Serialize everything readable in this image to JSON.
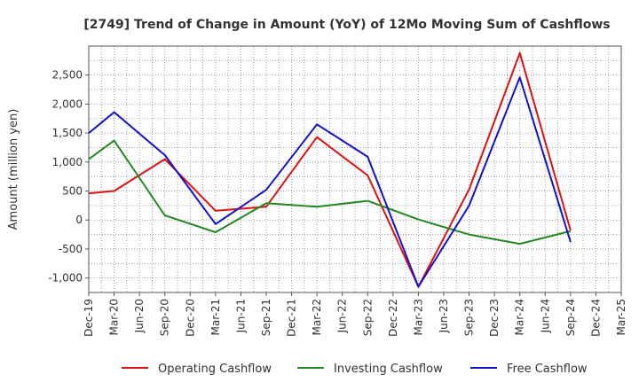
{
  "chart_data": {
    "type": "line",
    "title": "[2749]  Trend of Change in Amount (YoY) of 12Mo Moving Sum of Cashflows",
    "xlabel": "",
    "ylabel": "Amount (million yen)",
    "ylim": [
      -1250,
      3000
    ],
    "yticks": [
      2500,
      2000,
      1500,
      1000,
      500,
      0,
      -500,
      -1000
    ],
    "ytick_labels": [
      "2,500",
      "2,000",
      "1,500",
      "1,000",
      "500",
      "0",
      "-500",
      "-1,000"
    ],
    "categories": [
      "Dec-19",
      "Mar-20",
      "Jun-20",
      "Sep-20",
      "Dec-20",
      "Mar-21",
      "Jun-21",
      "Sep-21",
      "Dec-21",
      "Mar-22",
      "Jun-22",
      "Sep-22",
      "Dec-22",
      "Mar-23",
      "Jun-23",
      "Sep-23",
      "Dec-23",
      "Mar-24",
      "Jun-24",
      "Sep-24",
      "Dec-24",
      "Mar-25"
    ],
    "grid": true,
    "legend_position": "bottom",
    "series": [
      {
        "name": "Operating Cashflow",
        "color": "#dd1111",
        "points": [
          [
            0,
            460
          ],
          [
            1,
            500
          ],
          [
            3,
            1050
          ],
          [
            5,
            160
          ],
          [
            7,
            230
          ],
          [
            9,
            1430
          ],
          [
            11,
            770
          ],
          [
            13,
            -1150
          ],
          [
            15,
            530
          ],
          [
            17,
            2880
          ],
          [
            19,
            -180
          ]
        ]
      },
      {
        "name": "Investing Cashflow",
        "color": "#228822",
        "points": [
          [
            0,
            1050
          ],
          [
            1,
            1370
          ],
          [
            3,
            80
          ],
          [
            5,
            -210
          ],
          [
            7,
            290
          ],
          [
            9,
            230
          ],
          [
            11,
            330
          ],
          [
            13,
            10
          ],
          [
            15,
            -250
          ],
          [
            17,
            -410
          ],
          [
            19,
            -190
          ]
        ]
      },
      {
        "name": "Free Cashflow",
        "color": "#1111cc",
        "points": [
          [
            0,
            1500
          ],
          [
            1,
            1860
          ],
          [
            3,
            1120
          ],
          [
            5,
            -70
          ],
          [
            7,
            520
          ],
          [
            9,
            1650
          ],
          [
            11,
            1090
          ],
          [
            13,
            -1150
          ],
          [
            15,
            250
          ],
          [
            17,
            2460
          ],
          [
            19,
            -380
          ]
        ]
      }
    ]
  }
}
